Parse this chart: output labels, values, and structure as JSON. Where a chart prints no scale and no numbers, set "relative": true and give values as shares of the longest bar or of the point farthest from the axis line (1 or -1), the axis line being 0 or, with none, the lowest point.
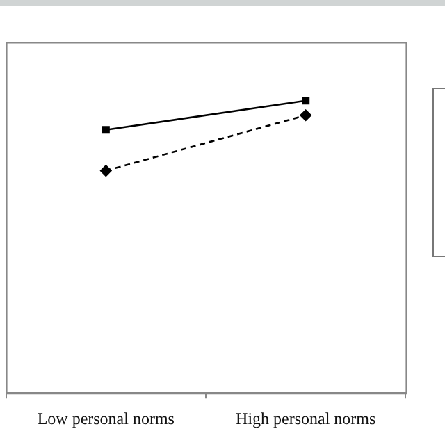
{
  "chart_data": {
    "type": "line",
    "relative": true,
    "categories": [
      "Low personal norms",
      "High personal norms"
    ],
    "series": [
      {
        "color": "#000000",
        "values": [
          0.9,
          1.0
        ],
        "marker": "square",
        "line_style": "solid"
      },
      {
        "color": "#000000",
        "values": [
          0.76,
          0.95
        ],
        "marker": "diamond",
        "line_style": "dashed"
      }
    ],
    "grid": false,
    "legend": false
  }
}
